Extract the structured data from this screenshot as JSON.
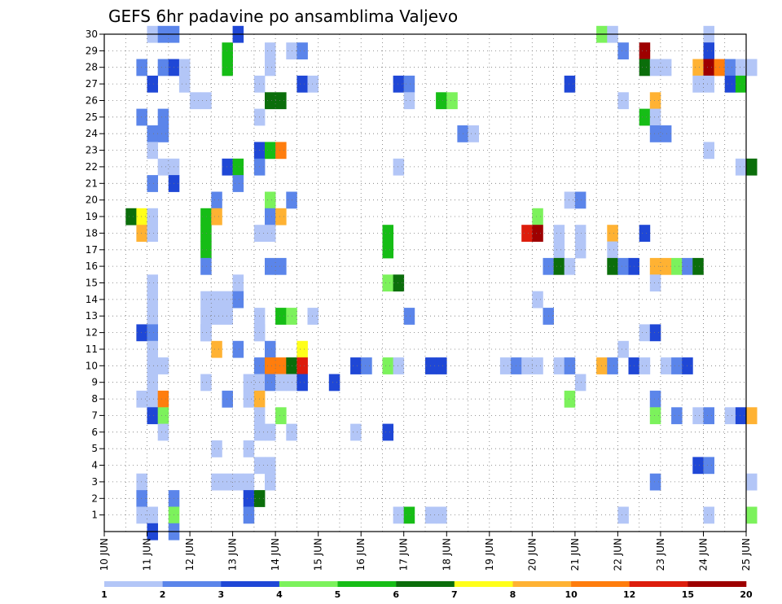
{
  "chart_data": {
    "type": "heatmap",
    "title": "GEFS 6hr padavine po ansamblima Valjevo",
    "y_ticks": [
      "1",
      "2",
      "3",
      "4",
      "5",
      "6",
      "7",
      "8",
      "9",
      "10",
      "11",
      "12",
      "13",
      "14",
      "15",
      "16",
      "17",
      "18",
      "19",
      "20",
      "21",
      "22",
      "23",
      "24",
      "25",
      "26",
      "27",
      "28",
      "29",
      "30"
    ],
    "ylim": [
      0,
      30
    ],
    "x_ticks": [
      "10 JUN",
      "11 JUN",
      "12 JUN",
      "13 JUN",
      "14 JUN",
      "15 JUN",
      "16 JUN",
      "17 JUN",
      "18 JUN",
      "19 JUN",
      "20 JUN",
      "21 JUN",
      "22 JUN",
      "23 JUN",
      "24 JUN",
      "25 JUN"
    ],
    "x_range_steps": [
      0,
      60
    ],
    "x_step_hours": 6,
    "grid": true,
    "colorbar": {
      "labels": [
        "1",
        "2",
        "3",
        "4",
        "5",
        "6",
        "7",
        "8",
        "10",
        "12",
        "15",
        "20"
      ],
      "colors": [
        "#b3c6f7",
        "#5b85ea",
        "#1f47d6",
        "#7cf25c",
        "#16bd16",
        "#0b6e0b",
        "#ffff1a",
        "#ffb233",
        "#ff7d0d",
        "#dd1d0c",
        "#9e0000"
      ]
    },
    "cells": [
      [
        4,
        30,
        1
      ],
      [
        5,
        30,
        2
      ],
      [
        6,
        30,
        2
      ],
      [
        12,
        30,
        3
      ],
      [
        46,
        30,
        4
      ],
      [
        47,
        30,
        1
      ],
      [
        56,
        30,
        1
      ],
      [
        11,
        29,
        5
      ],
      [
        15,
        29,
        1
      ],
      [
        17,
        29,
        1
      ],
      [
        18,
        29,
        2
      ],
      [
        48,
        29,
        2
      ],
      [
        50,
        29,
        11
      ],
      [
        56,
        29,
        3
      ],
      [
        3,
        28,
        2
      ],
      [
        5,
        28,
        2
      ],
      [
        6,
        28,
        3
      ],
      [
        7,
        28,
        1
      ],
      [
        11,
        28,
        5
      ],
      [
        15,
        28,
        1
      ],
      [
        50,
        28,
        6
      ],
      [
        51,
        28,
        1
      ],
      [
        52,
        28,
        1
      ],
      [
        55,
        28,
        8
      ],
      [
        56,
        28,
        11
      ],
      [
        57,
        28,
        9
      ],
      [
        58,
        28,
        2
      ],
      [
        59,
        28,
        1
      ],
      [
        60,
        28,
        1
      ],
      [
        4,
        27,
        3
      ],
      [
        7,
        27,
        1
      ],
      [
        14,
        27,
        1
      ],
      [
        18,
        27,
        3
      ],
      [
        19,
        27,
        1
      ],
      [
        27,
        27,
        3
      ],
      [
        28,
        27,
        2
      ],
      [
        43,
        27,
        3
      ],
      [
        55,
        27,
        1
      ],
      [
        56,
        27,
        1
      ],
      [
        58,
        27,
        3
      ],
      [
        59,
        27,
        5
      ],
      [
        8,
        26,
        1
      ],
      [
        9,
        26,
        1
      ],
      [
        15,
        26,
        6
      ],
      [
        16,
        26,
        6
      ],
      [
        28,
        26,
        1
      ],
      [
        31,
        26,
        5
      ],
      [
        32,
        26,
        4
      ],
      [
        48,
        26,
        1
      ],
      [
        51,
        26,
        8
      ],
      [
        3,
        25,
        2
      ],
      [
        5,
        25,
        2
      ],
      [
        14,
        25,
        1
      ],
      [
        50,
        25,
        5
      ],
      [
        51,
        25,
        1
      ],
      [
        4,
        24,
        2
      ],
      [
        5,
        24,
        2
      ],
      [
        33,
        24,
        2
      ],
      [
        34,
        24,
        1
      ],
      [
        51,
        24,
        2
      ],
      [
        52,
        24,
        2
      ],
      [
        4,
        23,
        1
      ],
      [
        14,
        23,
        3
      ],
      [
        15,
        23,
        5
      ],
      [
        16,
        23,
        9
      ],
      [
        56,
        23,
        1
      ],
      [
        5,
        22,
        1
      ],
      [
        6,
        22,
        1
      ],
      [
        11,
        22,
        3
      ],
      [
        12,
        22,
        5
      ],
      [
        14,
        22,
        2
      ],
      [
        27,
        22,
        1
      ],
      [
        59,
        22,
        1
      ],
      [
        60,
        22,
        6
      ],
      [
        4,
        21,
        2
      ],
      [
        6,
        21,
        3
      ],
      [
        12,
        21,
        2
      ],
      [
        10,
        20,
        2
      ],
      [
        15,
        20,
        4
      ],
      [
        17,
        20,
        2
      ],
      [
        43,
        20,
        1
      ],
      [
        44,
        20,
        2
      ],
      [
        2,
        19,
        6
      ],
      [
        3,
        19,
        7
      ],
      [
        4,
        19,
        1
      ],
      [
        9,
        19,
        5
      ],
      [
        10,
        19,
        8
      ],
      [
        15,
        19,
        2
      ],
      [
        16,
        19,
        8
      ],
      [
        40,
        19,
        4
      ],
      [
        3,
        18,
        8
      ],
      [
        4,
        18,
        1
      ],
      [
        9,
        18,
        5
      ],
      [
        14,
        18,
        1
      ],
      [
        15,
        18,
        1
      ],
      [
        26,
        18,
        5
      ],
      [
        39,
        18,
        10
      ],
      [
        40,
        18,
        11
      ],
      [
        42,
        18,
        1
      ],
      [
        44,
        18,
        1
      ],
      [
        47,
        18,
        8
      ],
      [
        50,
        18,
        3
      ],
      [
        9,
        17,
        5
      ],
      [
        26,
        17,
        5
      ],
      [
        42,
        17,
        1
      ],
      [
        44,
        17,
        1
      ],
      [
        47,
        17,
        1
      ],
      [
        9,
        16,
        2
      ],
      [
        15,
        16,
        2
      ],
      [
        16,
        16,
        2
      ],
      [
        41,
        16,
        2
      ],
      [
        42,
        16,
        6
      ],
      [
        43,
        16,
        1
      ],
      [
        47,
        16,
        6
      ],
      [
        48,
        16,
        2
      ],
      [
        49,
        16,
        3
      ],
      [
        51,
        16,
        8
      ],
      [
        52,
        16,
        8
      ],
      [
        53,
        16,
        4
      ],
      [
        54,
        16,
        2
      ],
      [
        55,
        16,
        6
      ],
      [
        12,
        15,
        1
      ],
      [
        26,
        15,
        4
      ],
      [
        27,
        15,
        6
      ],
      [
        51,
        15,
        1
      ],
      [
        9,
        14,
        1
      ],
      [
        10,
        14,
        1
      ],
      [
        11,
        14,
        1
      ],
      [
        12,
        14,
        2
      ],
      [
        40,
        14,
        1
      ],
      [
        9,
        13,
        1
      ],
      [
        10,
        13,
        1
      ],
      [
        11,
        13,
        1
      ],
      [
        4,
        13,
        1
      ],
      [
        14,
        13,
        1
      ],
      [
        16,
        13,
        5
      ],
      [
        17,
        13,
        4
      ],
      [
        19,
        13,
        1
      ],
      [
        28,
        13,
        2
      ],
      [
        41,
        13,
        2
      ],
      [
        4,
        12,
        1
      ],
      [
        9,
        12,
        1
      ],
      [
        14,
        12,
        1
      ],
      [
        4,
        12,
        1
      ],
      [
        9,
        12,
        1
      ],
      [
        14,
        12,
        1
      ],
      [
        4,
        14,
        1
      ],
      [
        4,
        15,
        1
      ],
      [
        3,
        12,
        3
      ],
      [
        4,
        12,
        2
      ],
      [
        9,
        12,
        1
      ],
      [
        50,
        12,
        1
      ],
      [
        51,
        12,
        3
      ],
      [
        4,
        11,
        1
      ],
      [
        10,
        11,
        8
      ],
      [
        12,
        11,
        2
      ],
      [
        15,
        11,
        2
      ],
      [
        18,
        11,
        7
      ],
      [
        48,
        11,
        1
      ],
      [
        4,
        10,
        1
      ],
      [
        5,
        10,
        1
      ],
      [
        14,
        10,
        2
      ],
      [
        15,
        10,
        9
      ],
      [
        16,
        10,
        9
      ],
      [
        17,
        10,
        6
      ],
      [
        18,
        10,
        10
      ],
      [
        23,
        10,
        3
      ],
      [
        24,
        10,
        2
      ],
      [
        26,
        10,
        4
      ],
      [
        27,
        10,
        1
      ],
      [
        30,
        10,
        3
      ],
      [
        31,
        10,
        3
      ],
      [
        37,
        10,
        1
      ],
      [
        38,
        10,
        2
      ],
      [
        39,
        10,
        1
      ],
      [
        40,
        10,
        1
      ],
      [
        42,
        10,
        1
      ],
      [
        43,
        10,
        2
      ],
      [
        46,
        10,
        8
      ],
      [
        47,
        10,
        2
      ],
      [
        49,
        10,
        3
      ],
      [
        50,
        10,
        1
      ],
      [
        52,
        10,
        1
      ],
      [
        53,
        10,
        2
      ],
      [
        54,
        10,
        3
      ],
      [
        4,
        9,
        1
      ],
      [
        9,
        9,
        1
      ],
      [
        13,
        9,
        1
      ],
      [
        14,
        9,
        1
      ],
      [
        15,
        9,
        2
      ],
      [
        16,
        9,
        1
      ],
      [
        17,
        9,
        1
      ],
      [
        18,
        9,
        3
      ],
      [
        21,
        9,
        3
      ],
      [
        44,
        9,
        1
      ],
      [
        3,
        8,
        1
      ],
      [
        4,
        8,
        1
      ],
      [
        5,
        8,
        9
      ],
      [
        11,
        8,
        2
      ],
      [
        13,
        8,
        1
      ],
      [
        14,
        8,
        8
      ],
      [
        43,
        8,
        4
      ],
      [
        51,
        8,
        2
      ],
      [
        4,
        7,
        3
      ],
      [
        5,
        7,
        4
      ],
      [
        14,
        7,
        1
      ],
      [
        16,
        7,
        4
      ],
      [
        51,
        7,
        4
      ],
      [
        53,
        7,
        2
      ],
      [
        55,
        7,
        1
      ],
      [
        56,
        7,
        2
      ],
      [
        58,
        7,
        1
      ],
      [
        59,
        7,
        3
      ],
      [
        60,
        7,
        8
      ],
      [
        5,
        6,
        1
      ],
      [
        14,
        6,
        1
      ],
      [
        15,
        6,
        1
      ],
      [
        17,
        6,
        1
      ],
      [
        23,
        6,
        1
      ],
      [
        26,
        6,
        3
      ],
      [
        10,
        5,
        1
      ],
      [
        13,
        5,
        1
      ],
      [
        14,
        4,
        1
      ],
      [
        15,
        4,
        1
      ],
      [
        55,
        4,
        3
      ],
      [
        56,
        4,
        2
      ],
      [
        3,
        3,
        1
      ],
      [
        10,
        3,
        1
      ],
      [
        11,
        3,
        1
      ],
      [
        12,
        3,
        1
      ],
      [
        13,
        3,
        1
      ],
      [
        15,
        3,
        1
      ],
      [
        51,
        3,
        2
      ],
      [
        60,
        3,
        1
      ],
      [
        3,
        2,
        2
      ],
      [
        6,
        2,
        2
      ],
      [
        13,
        2,
        3
      ],
      [
        14,
        2,
        6
      ],
      [
        3,
        1,
        1
      ],
      [
        4,
        1,
        1
      ],
      [
        6,
        1,
        4
      ],
      [
        13,
        1,
        2
      ],
      [
        27,
        1,
        1
      ],
      [
        28,
        1,
        5
      ],
      [
        30,
        1,
        1
      ],
      [
        31,
        1,
        1
      ],
      [
        48,
        1,
        1
      ],
      [
        56,
        1,
        1
      ],
      [
        60,
        1,
        4
      ],
      [
        4,
        0,
        3
      ],
      [
        6,
        0,
        2
      ]
    ]
  }
}
